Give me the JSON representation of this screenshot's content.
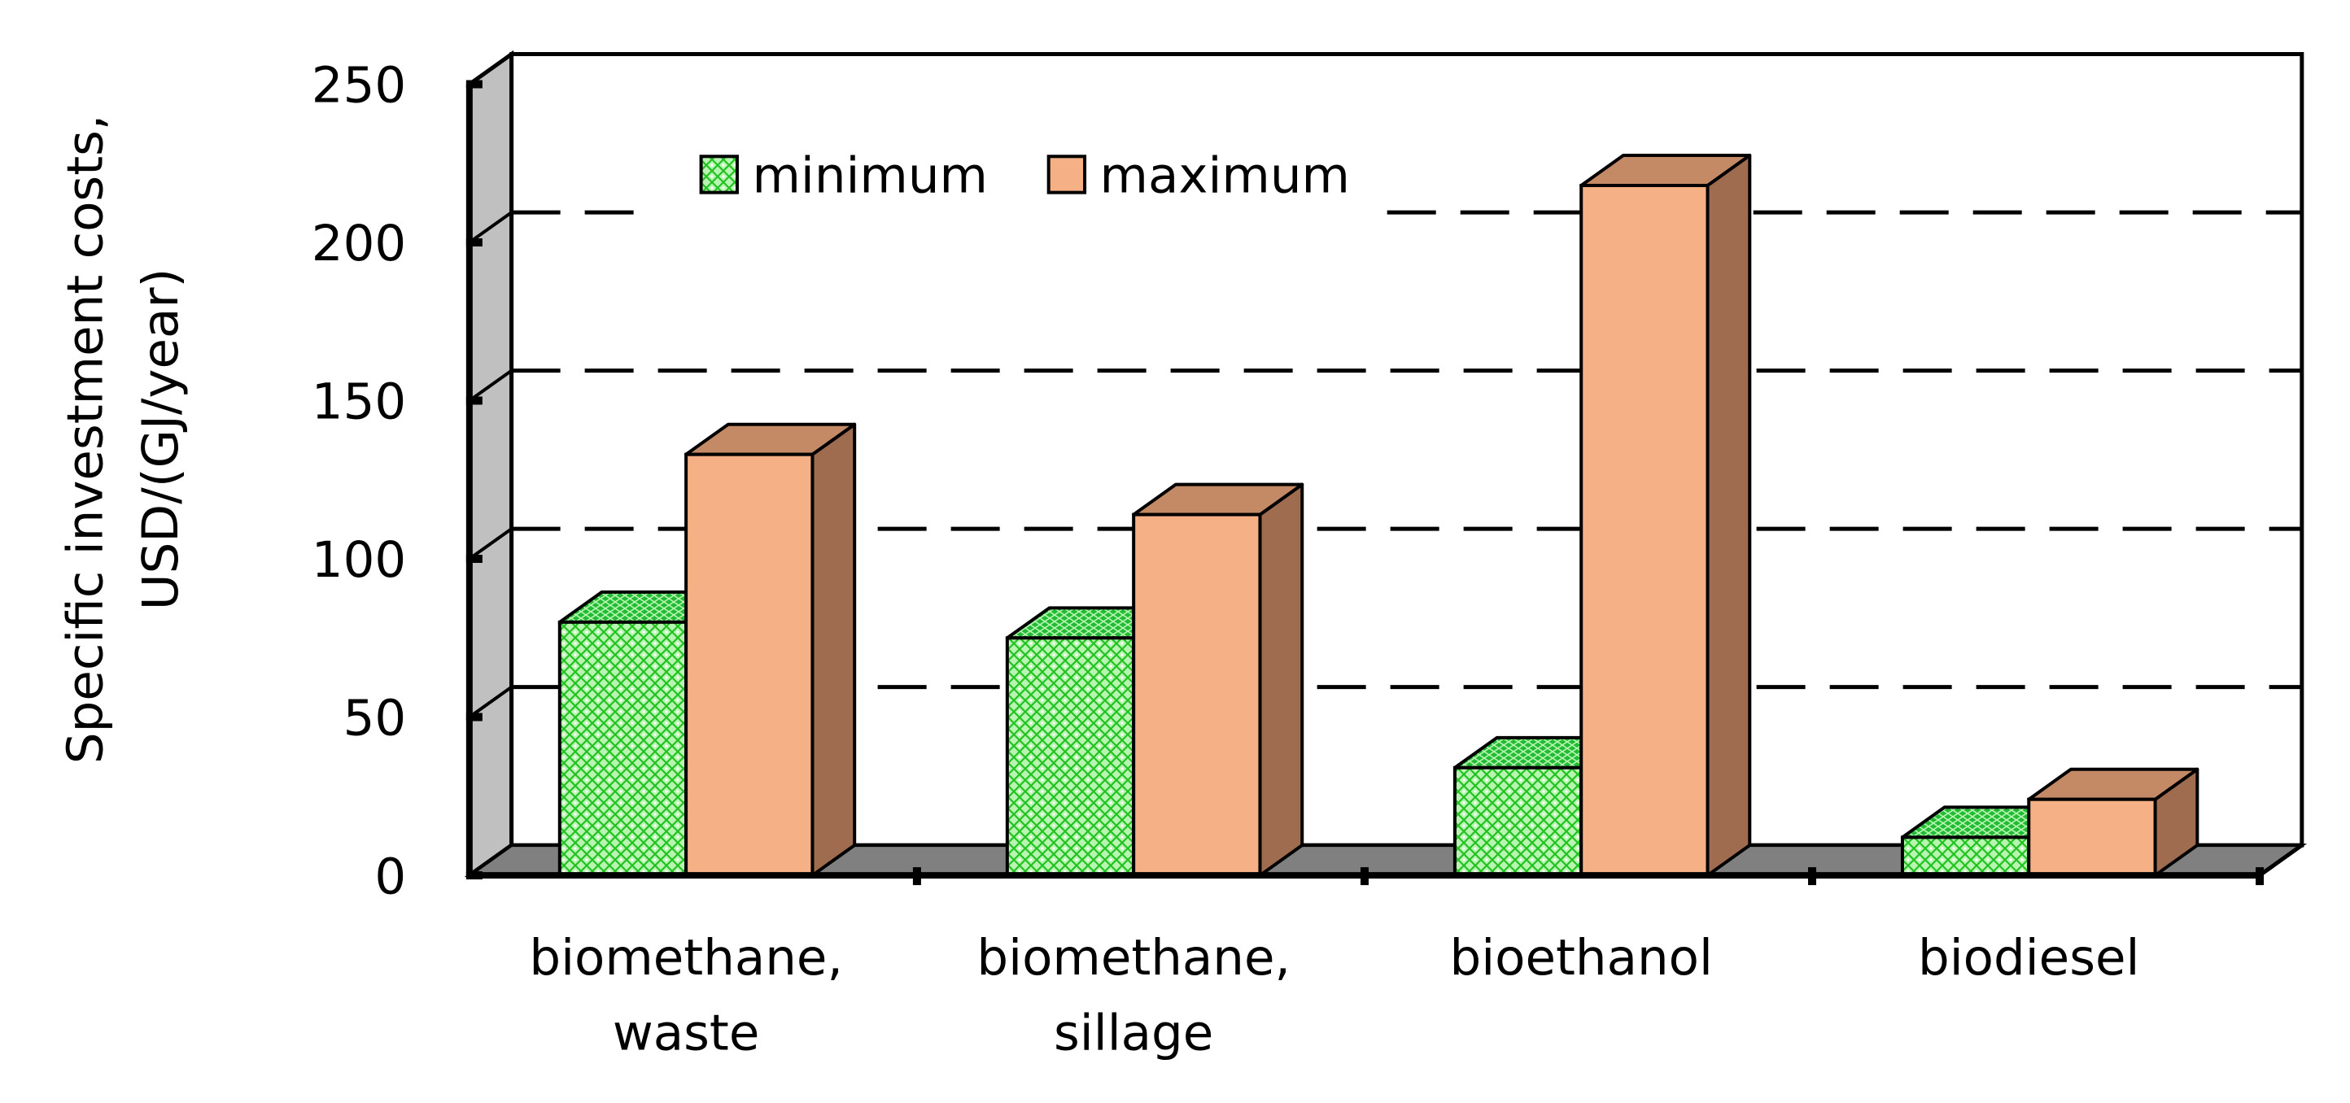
{
  "chart_data": {
    "type": "bar",
    "categories": [
      [
        "biomethane,",
        "waste"
      ],
      [
        "biomethane,",
        "sillage"
      ],
      [
        "bioethanol"
      ],
      [
        "biodiesel"
      ]
    ],
    "series": [
      {
        "name": "minimum",
        "values": [
          80,
          75,
          34,
          12
        ]
      },
      {
        "name": "maximum",
        "values": [
          133,
          114,
          218,
          24
        ]
      }
    ],
    "ylabel": [
      "Specific investment costs,",
      "USD/(GJ/year)"
    ],
    "xlabel": "",
    "ylim": [
      0,
      250
    ],
    "yticks": [
      "0",
      "50",
      "100",
      "150",
      "200",
      "250"
    ],
    "legend": [
      "minimum",
      "maximum"
    ],
    "legend_position": "top-left",
    "grid": "dashed",
    "colors": {
      "minimum_face": "#a8f2a0",
      "minimum_pattern": "#2ecc2e",
      "minimum_top": "#1fbf35",
      "maximum_face": "#f5b185",
      "maximum_top": "#c48a66",
      "maximum_side": "#a06c50",
      "wall": "#c0c0c0",
      "floor": "#808080",
      "axis": "#000000"
    }
  }
}
